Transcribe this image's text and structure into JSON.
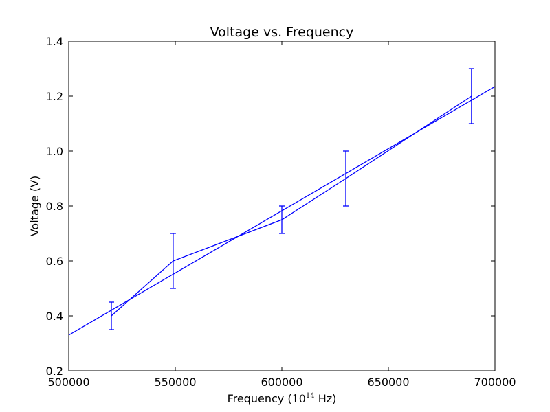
{
  "chart_data": {
    "type": "line",
    "title": "Voltage vs. Frequency",
    "xlabel": {
      "prefix": "Frequency (",
      "base": "10",
      "exponent": "14",
      "suffix": " Hz)"
    },
    "ylabel": "Voltage (V)",
    "xlim": [
      500000,
      700000
    ],
    "ylim": [
      0.2,
      1.4
    ],
    "x_ticks": [
      500000,
      550000,
      600000,
      650000,
      700000
    ],
    "x_tick_labels": [
      "500000",
      "550000",
      "600000",
      "650000",
      "700000"
    ],
    "y_ticks": [
      0.2,
      0.4,
      0.6,
      0.8,
      1.0,
      1.2,
      1.4
    ],
    "y_tick_labels": [
      "0.2",
      "0.4",
      "0.6",
      "0.8",
      "1.0",
      "1.2",
      "1.4"
    ],
    "grid": false,
    "color": "#0000ff",
    "series": [
      {
        "kind": "data-with-errorbars",
        "x": [
          520000,
          549000,
          600000,
          630000,
          689000
        ],
        "y": [
          0.4,
          0.6,
          0.75,
          0.9,
          1.2
        ],
        "yerr": [
          0.05,
          0.1,
          0.05,
          0.1,
          0.1
        ]
      },
      {
        "kind": "fit-line",
        "x": [
          500000,
          700000
        ],
        "y": [
          0.33,
          1.235
        ]
      }
    ]
  }
}
